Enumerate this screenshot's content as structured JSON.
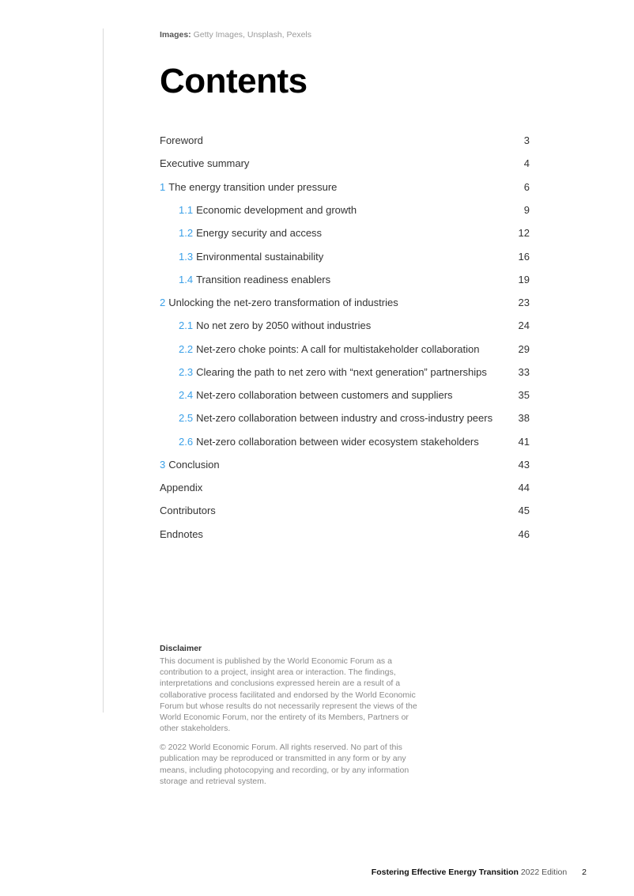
{
  "credits": {
    "label": "Images:",
    "value": "Getty Images, Unsplash, Pexels"
  },
  "title": "Contents",
  "toc": [
    {
      "num": "",
      "label": "Foreword",
      "page": "3",
      "sub": false
    },
    {
      "num": "",
      "label": "Executive summary",
      "page": "4",
      "sub": false
    },
    {
      "num": "1",
      "label": "The energy transition under pressure",
      "page": "6",
      "sub": false
    },
    {
      "num": "1.1",
      "label": "Economic development and growth",
      "page": "9",
      "sub": true
    },
    {
      "num": "1.2",
      "label": "Energy security and access",
      "page": "12",
      "sub": true
    },
    {
      "num": "1.3",
      "label": "Environmental sustainability",
      "page": "16",
      "sub": true
    },
    {
      "num": "1.4",
      "label": "Transition readiness enablers",
      "page": "19",
      "sub": true
    },
    {
      "num": "2",
      "label": "Unlocking the net-zero transformation of industries",
      "page": "23",
      "sub": false
    },
    {
      "num": "2.1",
      "label": "No net zero by 2050 without industries",
      "page": "24",
      "sub": true
    },
    {
      "num": "2.2",
      "label": "Net-zero choke points: A call for multistakeholder collaboration",
      "page": "29",
      "sub": true
    },
    {
      "num": "2.3",
      "label": "Clearing the path to net zero with “next generation” partnerships",
      "page": "33",
      "sub": true
    },
    {
      "num": "2.4",
      "label": "Net-zero collaboration between customers and suppliers",
      "page": "35",
      "sub": true
    },
    {
      "num": "2.5",
      "label": "Net-zero collaboration between industry and cross-industry peers",
      "page": "38",
      "sub": true
    },
    {
      "num": "2.6",
      "label": "Net-zero collaboration between wider ecosystem stakeholders",
      "page": "41",
      "sub": true
    },
    {
      "num": "3",
      "label": "Conclusion",
      "page": "43",
      "sub": false
    },
    {
      "num": "",
      "label": "Appendix",
      "page": "44",
      "sub": false
    },
    {
      "num": "",
      "label": "Contributors",
      "page": "45",
      "sub": false
    },
    {
      "num": "",
      "label": "Endnotes",
      "page": "46",
      "sub": false
    }
  ],
  "disclaimer": {
    "heading": "Disclaimer",
    "body": "This document is published by the World Economic Forum as a contribution to a project, insight area or interaction. The findings, interpretations and conclusions expressed herein are a result of a collaborative process facilitated and endorsed by the World Economic Forum but whose results do not necessarily represent the views of the World Economic Forum, nor the entirety of its Members, Partners or other stakeholders.",
    "copyright": "© 2022 World Economic Forum. All rights reserved. No part of this publication may be reproduced or transmitted in any form or by any means, including photocopying and recording, or by any information storage and retrieval system."
  },
  "footer": {
    "title": "Fostering Effective Energy Transition",
    "edition": "2022 Edition",
    "page": "2"
  },
  "colors": {
    "accent": "#3aa0e8",
    "rule": "#d9d9d9",
    "text": "#333333",
    "muted": "#8a8a8a"
  }
}
